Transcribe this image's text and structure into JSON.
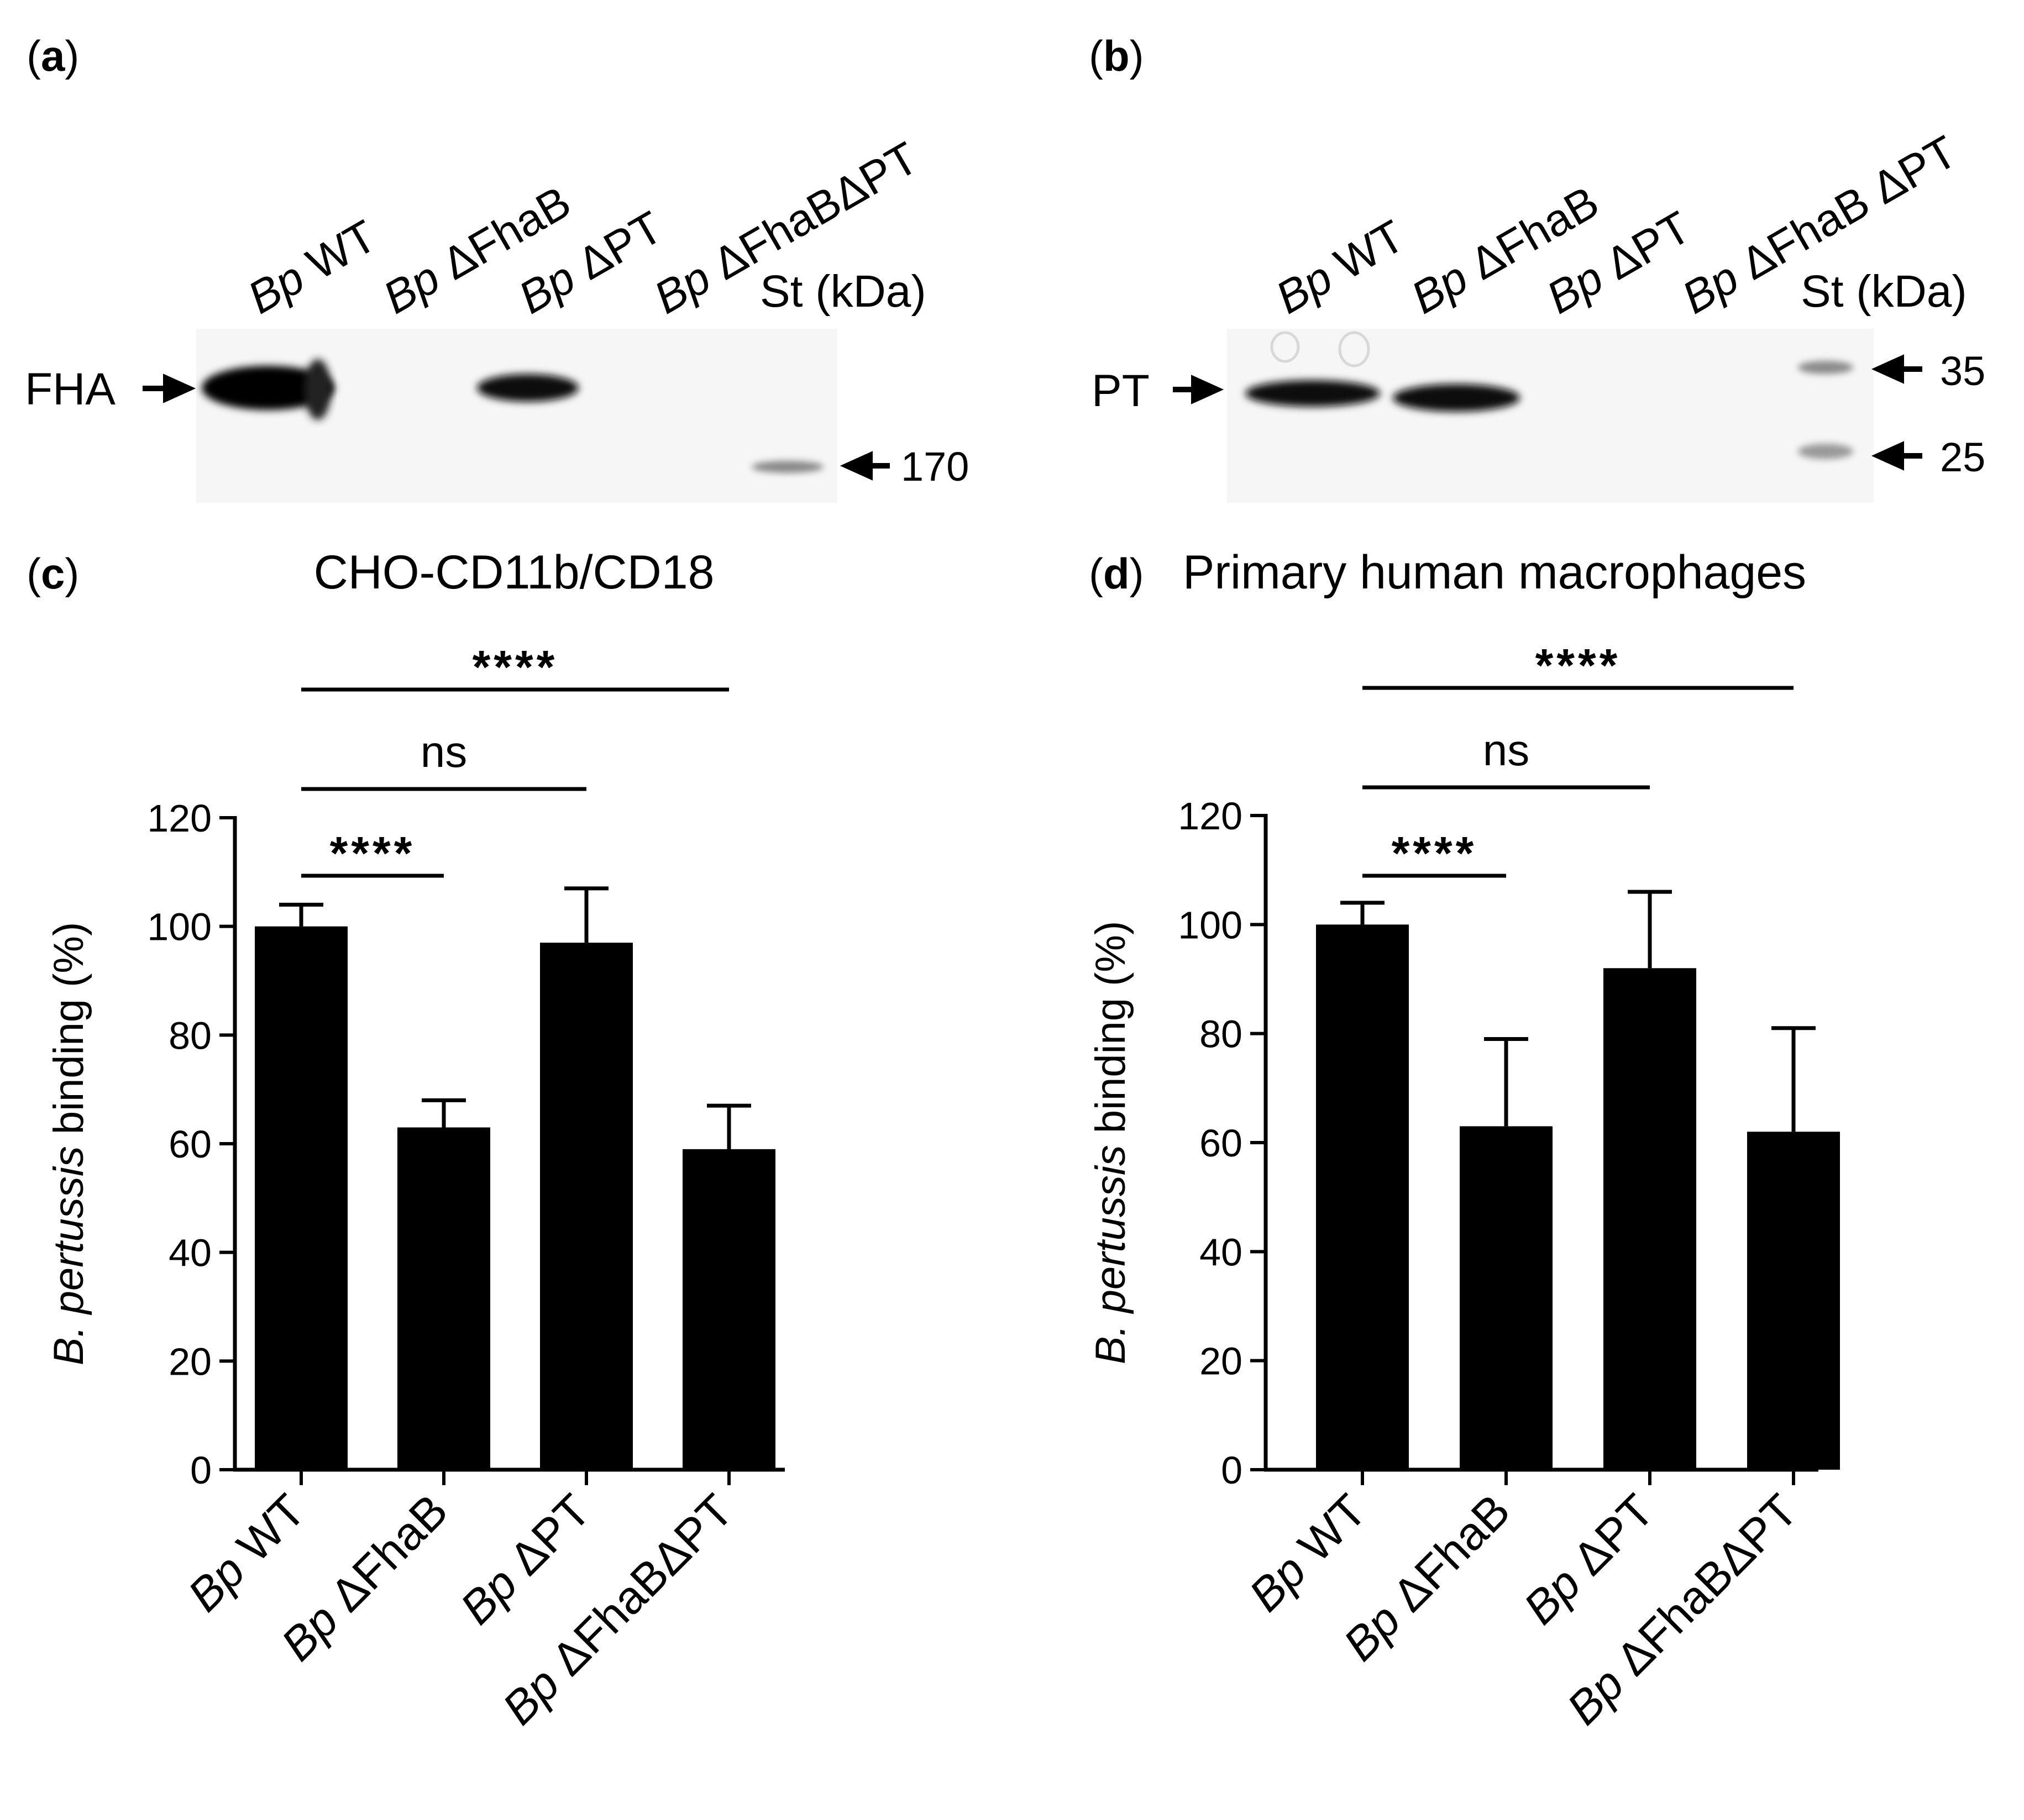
{
  "panels": {
    "a": {
      "label_open": "(",
      "label": "a",
      "label_close": ")",
      "lanes": [
        {
          "italic": "Bp",
          "rest": " WT"
        },
        {
          "italic": "Bp",
          "rest": " ΔFhaB"
        },
        {
          "italic": "Bp",
          "rest": " ΔPT"
        },
        {
          "italic": "Bp",
          "rest": " ΔFhaBΔPT"
        }
      ],
      "standard": "St (kDa)",
      "protein": "FHA",
      "markers": [
        "170"
      ]
    },
    "b": {
      "label_open": "(",
      "label": "b",
      "label_close": ")",
      "lanes": [
        {
          "italic": "Bp",
          "rest": " WT"
        },
        {
          "italic": "Bp",
          "rest": " ΔFhaB"
        },
        {
          "italic": "Bp",
          "rest": " ΔPT"
        },
        {
          "italic": "Bp",
          "rest": " ΔFhaB ΔPT"
        }
      ],
      "standard": "St (kDa)",
      "protein": "PT",
      "markers": [
        "35",
        "25"
      ]
    },
    "c": {
      "label_open": "(",
      "label": "c",
      "label_close": ")"
    },
    "d": {
      "label_open": "(",
      "label": "d",
      "label_close": ")"
    }
  },
  "chart_data": [
    {
      "type": "bar",
      "panel": "c",
      "title": "CHO-CD11b/CD18",
      "ylabel_italic": "B. pertussis",
      "ylabel_rest": " binding (%)",
      "ylim": [
        0,
        120
      ],
      "yticks": [
        "0",
        "20",
        "40",
        "60",
        "80",
        "100",
        "120"
      ],
      "categories": [
        {
          "italic": "Bp",
          "rest": " WT"
        },
        {
          "italic": "Bp",
          "rest": " ΔFhaB"
        },
        {
          "italic": "Bp",
          "rest": " ΔPT"
        },
        {
          "italic": "Bp",
          "rest": " ΔFhaBΔPT"
        }
      ],
      "values": [
        100,
        63,
        97,
        59
      ],
      "errors": [
        4,
        5,
        10,
        8
      ],
      "significance": [
        {
          "from": 0,
          "to": 1,
          "label": "****"
        },
        {
          "from": 0,
          "to": 2,
          "label": "ns"
        },
        {
          "from": 0,
          "to": 3,
          "label": "****"
        }
      ],
      "color": "#000000"
    },
    {
      "type": "bar",
      "panel": "d",
      "title": "Primary human macrophages",
      "ylabel_italic": "B. pertussis",
      "ylabel_rest": " binding (%)",
      "ylim": [
        0,
        120
      ],
      "yticks": [
        "0",
        "20",
        "40",
        "60",
        "80",
        "100",
        "120"
      ],
      "categories": [
        {
          "italic": "Bp",
          "rest": " WT"
        },
        {
          "italic": "Bp",
          "rest": " ΔFhaB"
        },
        {
          "italic": "Bp",
          "rest": " ΔPT"
        },
        {
          "italic": "Bp",
          "rest": " ΔFhaBΔPT"
        }
      ],
      "values": [
        100,
        63,
        92,
        62
      ],
      "errors": [
        4,
        16,
        14,
        19
      ],
      "significance": [
        {
          "from": 0,
          "to": 1,
          "label": "****"
        },
        {
          "from": 0,
          "to": 2,
          "label": "ns"
        },
        {
          "from": 0,
          "to": 3,
          "label": "****"
        }
      ],
      "color": "#000000"
    }
  ]
}
